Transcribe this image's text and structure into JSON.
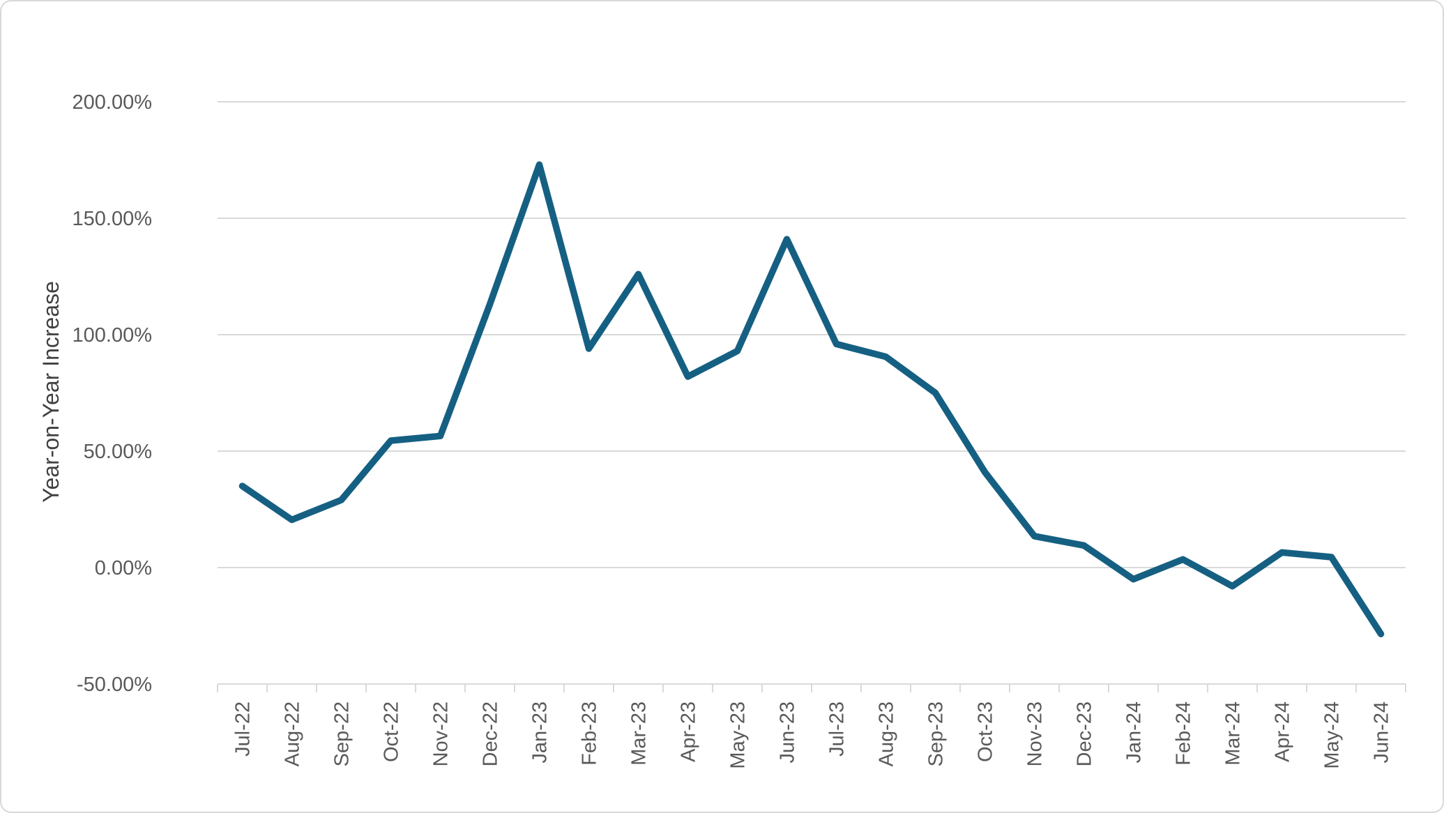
{
  "chart_data": {
    "type": "line",
    "title": "",
    "xlabel": "",
    "ylabel": "Year-on-Year Increase",
    "categories": [
      "Jul-22",
      "Aug-22",
      "Sep-22",
      "Oct-22",
      "Nov-22",
      "Dec-22",
      "Jan-23",
      "Feb-23",
      "Mar-23",
      "Apr-23",
      "May-23",
      "Jun-23",
      "Jul-23",
      "Aug-23",
      "Sep-23",
      "Oct-23",
      "Nov-23",
      "Dec-23",
      "Jan-24",
      "Feb-24",
      "Mar-24",
      "Apr-24",
      "May-24",
      "Jun-24"
    ],
    "series": [
      {
        "name": "Year-on-Year Increase",
        "values": [
          35,
          20.5,
          29,
          54.5,
          56.5,
          113,
          173,
          94,
          126,
          82,
          93,
          141,
          96,
          90.5,
          75,
          41,
          13.5,
          9.5,
          -5,
          3.5,
          -8,
          6.5,
          4.5,
          -28.5
        ]
      }
    ],
    "ylim": [
      -50,
      200
    ],
    "y_ticks": [
      200,
      150,
      100,
      50,
      0,
      -50
    ],
    "y_tick_labels": [
      "200.00%",
      "150.00%",
      "100.00%",
      "50.00%",
      "0.00%",
      "-50.00%"
    ],
    "grid": true,
    "legend": false,
    "colors": {
      "series_line": "#156082",
      "gridline": "#d9d9d9",
      "axis_line": "#d9d9d9",
      "tick_label": "#595959",
      "axis_title": "#404040",
      "background": "#ffffff"
    }
  }
}
